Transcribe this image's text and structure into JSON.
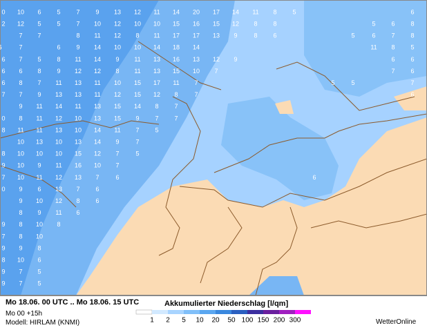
{
  "map": {
    "grid_values": [
      [
        0,
        10,
        6,
        5,
        7,
        9,
        13,
        12,
        11,
        14,
        20,
        17,
        14,
        11,
        8,
        5,
        6
      ],
      [
        2,
        12,
        5,
        5,
        7,
        10,
        12,
        10,
        10,
        15,
        16,
        15,
        12,
        8,
        8,
        5,
        6,
        8
      ],
      [
        7,
        7,
        8,
        11,
        12,
        8,
        11,
        17,
        17,
        13,
        9,
        8,
        6,
        5,
        6,
        7,
        8
      ],
      [
        7,
        6,
        9,
        14,
        10,
        10,
        14,
        18,
        14,
        11,
        8,
        5,
        6,
        6
      ],
      [
        6,
        7,
        5,
        8,
        11,
        14,
        9,
        11,
        13,
        16,
        13,
        12,
        9,
        6,
        6
      ],
      [
        6,
        6,
        8,
        9,
        12,
        12,
        8,
        11,
        13,
        15,
        10,
        7,
        7,
        6
      ],
      [
        6,
        8,
        7,
        11,
        13,
        11,
        10,
        15,
        17,
        11,
        7,
        5,
        5,
        7
      ],
      [
        7,
        7,
        9,
        13,
        13,
        11,
        12,
        15,
        12,
        8,
        7,
        6
      ],
      [
        9,
        11,
        14,
        11,
        13,
        15,
        14,
        8,
        7
      ],
      [
        0,
        8,
        11,
        12,
        10,
        13,
        15,
        9,
        7,
        7
      ],
      [
        8,
        11,
        11,
        13,
        10,
        14,
        11,
        7,
        5
      ],
      [
        10,
        13,
        10,
        13,
        14,
        9,
        7
      ],
      [
        8,
        10,
        10,
        10,
        15,
        12,
        7,
        5
      ],
      [
        9,
        10,
        9,
        11,
        16,
        10,
        7
      ],
      [
        7,
        10,
        11,
        12,
        13,
        7,
        6,
        6
      ],
      [
        0,
        9,
        6,
        13,
        7,
        6
      ],
      [
        9,
        10,
        12,
        8,
        6
      ],
      [
        8,
        9,
        11,
        6
      ],
      [
        9,
        8,
        10,
        8
      ],
      [
        7,
        8,
        10
      ],
      [
        9,
        9,
        8
      ],
      [
        8,
        10,
        6
      ],
      [
        9,
        7,
        5
      ],
      [
        9,
        7,
        5
      ]
    ]
  },
  "footer": {
    "period": "Mo 18.06. 00 UTC .. Mo 18.06. 15 UTC",
    "run": "Mo 00 +15h",
    "model": "Modell: HIRLAM (KNMI)",
    "legend_title": "Akkumulierter Niederschlag [l/qm]",
    "scale_labels": [
      1,
      2,
      5,
      10,
      20,
      50,
      100,
      150,
      200,
      300
    ],
    "brand": "WetterOnline"
  }
}
